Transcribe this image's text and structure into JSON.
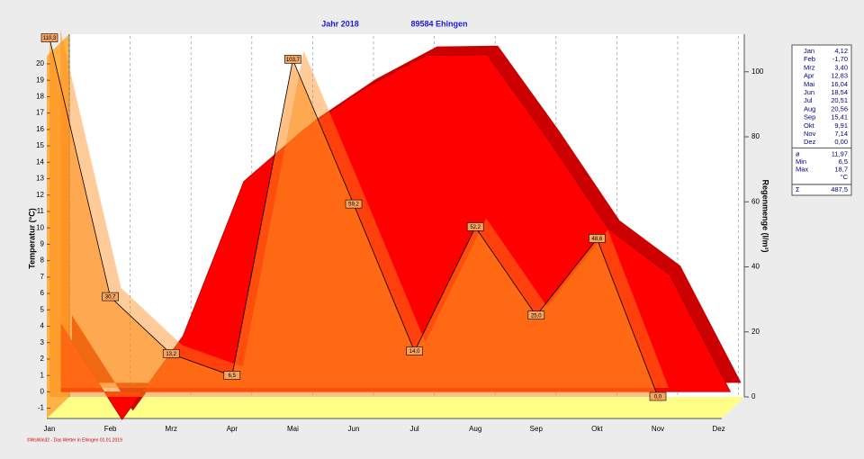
{
  "chart_data": {
    "type": "area-line",
    "title": "Jahr  2018",
    "subtitle": "89584 Ehingen",
    "y_label": "Temperatur  (°C)",
    "y2_label": "Regenmenge  (l/m²)",
    "categories": [
      "Jan",
      "Feb",
      "Mrz",
      "Apr",
      "Mai",
      "Jun",
      "Jul",
      "Aug",
      "Sep",
      "Okt",
      "Nov",
      "Dez"
    ],
    "series": [
      {
        "name": "Temperatur",
        "color": "#ff0000",
        "axis": "y",
        "values": [
          4.12,
          -1.7,
          3.4,
          12.83,
          16.04,
          18.54,
          20.51,
          20.56,
          15.41,
          9.91,
          7.14,
          0.0
        ],
        "value_labels": [
          "4,12",
          "-1,70",
          "3,40",
          "12,83",
          "16,04",
          "18,54",
          "20,51",
          "20,56",
          "15,41",
          "9,91",
          "7,14",
          "0,00"
        ]
      },
      {
        "name": "Regenmenge",
        "color": "#ff8c1a",
        "axis": "y2",
        "values": [
          110.3,
          30.7,
          13.2,
          6.5,
          103.7,
          59.2,
          14.0,
          52.2,
          25.0,
          48.6,
          0.0,
          null
        ],
        "value_labels": [
          "110,3",
          "30,7",
          "13,2",
          "6,5",
          "103,7",
          "59,2",
          "14,0",
          "52,2",
          "25,0",
          "48,6",
          "0,0",
          null
        ]
      }
    ],
    "ylim": [
      -1.9,
      21.7
    ],
    "yticks": [
      -1,
      0,
      1,
      2,
      3,
      4,
      5,
      6,
      7,
      8,
      9,
      10,
      11,
      12,
      13,
      14,
      15,
      16,
      17,
      18,
      19,
      20
    ],
    "y2lim": [
      0,
      111
    ],
    "y2ticks": [
      0,
      20,
      40,
      60,
      80,
      100
    ],
    "grid": true,
    "stats": [
      {
        "label": "ø",
        "value": "11,97"
      },
      {
        "label": "Min",
        "value": "6,5"
      },
      {
        "label": "Max",
        "value": "18,7"
      }
    ],
    "stats_unit": "°C",
    "sum": {
      "label": "Σ",
      "value": "487,5"
    },
    "footer": "©WsWin32 - Das Wetter in Ehingen  01.01.2019"
  }
}
